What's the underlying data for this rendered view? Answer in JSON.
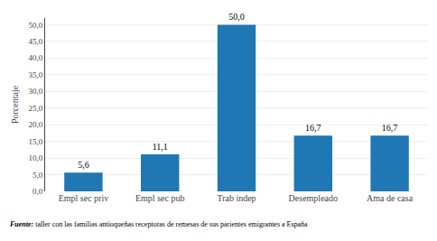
{
  "chart_data": {
    "type": "bar",
    "categories": [
      "Empl sec priv",
      "Empl sec pub",
      "Trab indep",
      "Desempleado",
      "Ama de casa"
    ],
    "values": [
      5.6,
      11.1,
      50.0,
      16.7,
      16.7
    ],
    "value_labels": [
      "5,6",
      "11,1",
      "50,0",
      "16,7",
      "16,7"
    ],
    "data_labels": true,
    "ylabel": "Porcentaje",
    "ylim": [
      0,
      52
    ],
    "yticks": [
      {
        "value": 0.0,
        "label": "0,0"
      },
      {
        "value": 5.0,
        "label": "5,0"
      },
      {
        "value": 10.0,
        "label": "10,0"
      },
      {
        "value": 15.0,
        "label": "15,0"
      },
      {
        "value": 20.0,
        "label": "20,0"
      },
      {
        "value": 25.0,
        "label": "25,0"
      },
      {
        "value": 30.0,
        "label": "30,0"
      },
      {
        "value": 35.0,
        "label": "35,0"
      },
      {
        "value": 40.0,
        "label": "40,0"
      },
      {
        "value": 45.0,
        "label": "45,0"
      },
      {
        "value": 50.0,
        "label": "50,0"
      }
    ],
    "grid": true,
    "annotations": [
      "Fuente:",
      " taller con las familias antioqueñas receptoras de remesas de sus parientes emigrantes a España"
    ]
  }
}
